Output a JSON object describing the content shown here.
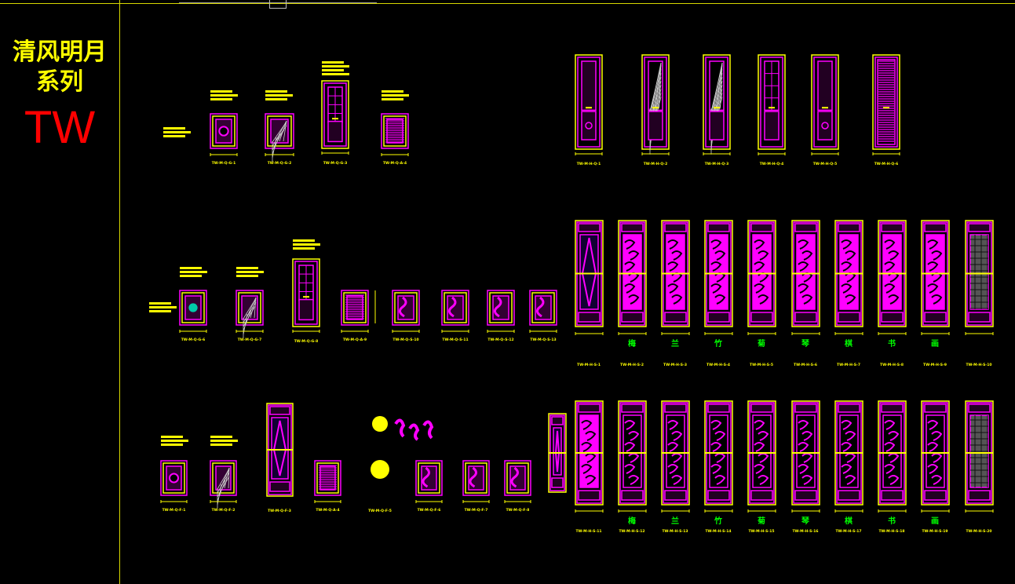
{
  "sidebar": {
    "title_line1": "清风明月",
    "title_line2": "系列",
    "brand": "TW"
  },
  "rows": {
    "row1": {
      "left_codes": [
        "TW-M-Q-G-1",
        "TW-M-Q-G-2",
        "TW-M-Q-G-3",
        "TW-M-Q-A-4"
      ],
      "doors": [
        "door-1",
        "door-2",
        "door-3",
        "door-4",
        "door-5",
        "door-6"
      ],
      "door_codes": [
        "TW-M-H-Q-1",
        "TW-M-H-Q-2",
        "TW-M-H-Q-3",
        "TW-M-H-Q-4",
        "TW-M-H-Q-5",
        "TW-M-H-Q-6"
      ]
    },
    "row2": {
      "left_codes": [
        "TW-M-Q-G-6",
        "TW-M-Q-G-7",
        "TW-M-Q-G-8",
        "TW-M-Q-A-9",
        "TW-M-Q-S-10",
        "TW-M-Q-S-11",
        "TW-M-Q-S-12",
        "TW-M-Q-S-13"
      ],
      "panel_chars": [
        "梅",
        "兰",
        "竹",
        "菊",
        "琴",
        "棋",
        "书",
        "画"
      ],
      "panel_codes": [
        "TW-M-H-S-1",
        "TW-M-H-S-2",
        "TW-M-H-S-3",
        "TW-M-H-S-4",
        "TW-M-H-S-5",
        "TW-M-H-S-6",
        "TW-M-H-S-7",
        "TW-M-H-S-8",
        "TW-M-H-S-9",
        "TW-M-H-S-10"
      ]
    },
    "row3": {
      "left_codes": [
        "TW-M-Q-F-1",
        "TW-M-Q-F-2",
        "TW-M-Q-F-3",
        "TW-M-Q-A-4",
        "TW-M-Q-F-5",
        "TW-M-Q-F-6",
        "TW-M-Q-F-7",
        "TW-M-Q-F-8"
      ],
      "panel_chars": [
        "梅",
        "兰",
        "竹",
        "菊",
        "琴",
        "棋",
        "书",
        "画"
      ],
      "panel_codes": [
        "TW-M-H-S-11",
        "TW-M-H-S-12",
        "TW-M-H-S-13",
        "TW-M-H-S-14",
        "TW-M-H-S-15",
        "TW-M-H-S-16",
        "TW-M-H-S-17",
        "TW-M-H-S-18",
        "TW-M-H-S-19",
        "TW-M-H-S-20"
      ]
    }
  },
  "colors": {
    "frame": "#d8d800",
    "magenta": "#ff00ff",
    "yellow": "#ffff00",
    "green": "#00ff00",
    "red": "#ff0000",
    "cyan": "#00ffcc"
  }
}
